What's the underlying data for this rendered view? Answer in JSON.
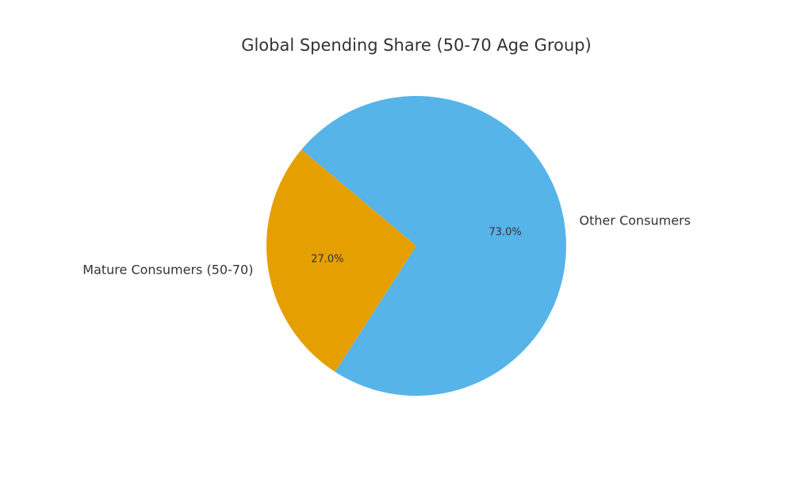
{
  "chart_data": {
    "type": "pie",
    "title": "Global Spending Share (50-70 Age Group)",
    "categories": [
      "Mature Consumers (50-70)",
      "Other Consumers"
    ],
    "values": [
      27.0,
      73.0
    ],
    "value_labels": [
      "27.0%",
      "73.0%"
    ],
    "colors": [
      "#E69F00",
      "#56B4E9"
    ]
  }
}
